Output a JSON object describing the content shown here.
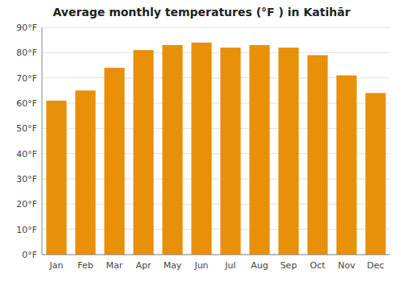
{
  "chart_data": {
    "type": "bar",
    "title": "Average monthly temperatures (°F ) in Katihār",
    "categories": [
      "Jan",
      "Feb",
      "Mar",
      "Apr",
      "May",
      "Jun",
      "Jul",
      "Aug",
      "Sep",
      "Oct",
      "Nov",
      "Dec"
    ],
    "values": [
      61,
      65,
      74,
      81,
      83,
      84,
      82,
      83,
      82,
      79,
      71,
      64
    ],
    "color": "#E8900A",
    "ylim": [
      0,
      90
    ],
    "yticks": [
      {
        "value": 0,
        "label": "0°F"
      },
      {
        "value": 10,
        "label": "10°F"
      },
      {
        "value": 20,
        "label": "20°F"
      },
      {
        "value": 30,
        "label": "30°F"
      },
      {
        "value": 40,
        "label": "40°F"
      },
      {
        "value": 50,
        "label": "50°F"
      },
      {
        "value": 60,
        "label": "60°F"
      },
      {
        "value": 70,
        "label": "70°F"
      },
      {
        "value": 80,
        "label": "80°F"
      },
      {
        "value": 90,
        "label": "90°F"
      }
    ],
    "grid": true
  }
}
